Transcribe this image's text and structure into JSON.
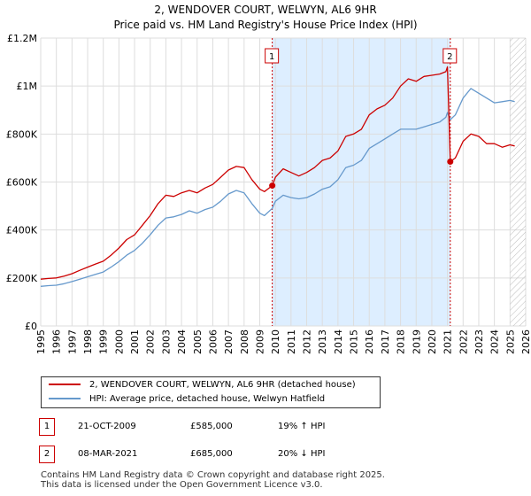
{
  "title_line1": "2, WENDOVER COURT, WELWYN, AL6 9HR",
  "title_line2": "Price paid vs. HM Land Registry's House Price Index (HPI)",
  "colors": {
    "property": "#cc0000",
    "hpi": "#6699cc",
    "grid": "#dddddd",
    "shade": "#ddeeff"
  },
  "legend": {
    "property_label": "2, WENDOVER COURT, WELWYN, AL6 9HR (detached house)",
    "hpi_label": "HPI: Average price, detached house, Welwyn Hatfield"
  },
  "sales": [
    {
      "id": "1",
      "date": "21-OCT-2009",
      "price": "£585,000",
      "hpi_change": "19% ↑ HPI",
      "year": 2009.8,
      "value": 585000
    },
    {
      "id": "2",
      "date": "08-MAR-2021",
      "price": "£685,000",
      "hpi_change": "20% ↓ HPI",
      "year": 2021.18,
      "value": 685000
    }
  ],
  "footer_line1": "Contains HM Land Registry data © Crown copyright and database right 2025.",
  "footer_line2": "This data is licensed under the Open Government Licence v3.0.",
  "chart_data": {
    "type": "line",
    "title": "2, WENDOVER COURT, WELWYN, AL6 9HR — Price paid vs. HM Land Registry's House Price Index (HPI)",
    "xlabel": "",
    "ylabel": "",
    "xlim": [
      1995,
      2026
    ],
    "ylim": [
      0,
      1200000
    ],
    "yticks": [
      0,
      200000,
      400000,
      600000,
      800000,
      1000000,
      1200000
    ],
    "ytick_labels": [
      "£0",
      "£200K",
      "£400K",
      "£600K",
      "£800K",
      "£1M",
      "£1.2M"
    ],
    "xticks": [
      1995,
      1996,
      1997,
      1998,
      1999,
      2000,
      2001,
      2002,
      2003,
      2004,
      2005,
      2006,
      2007,
      2008,
      2009,
      2010,
      2011,
      2012,
      2013,
      2014,
      2015,
      2016,
      2017,
      2018,
      2019,
      2020,
      2021,
      2022,
      2023,
      2024,
      2025,
      2026
    ],
    "shaded_ranges": [
      [
        2009.8,
        2021.18
      ]
    ],
    "hatched_after": 2025.0,
    "series": [
      {
        "name": "2, WENDOVER COURT, WELWYN, AL6 9HR (detached house)",
        "x": [
          1995,
          1995.5,
          1996,
          1996.5,
          1997,
          1997.5,
          1998,
          1998.5,
          1999,
          1999.5,
          2000,
          2000.5,
          2001,
          2001.5,
          2002,
          2002.5,
          2003,
          2003.5,
          2004,
          2004.5,
          2005,
          2005.5,
          2006,
          2006.5,
          2007,
          2007.5,
          2008,
          2008.5,
          2009,
          2009.3,
          2009.8,
          2010,
          2010.5,
          2011,
          2011.5,
          2012,
          2012.5,
          2013,
          2013.5,
          2014,
          2014.5,
          2015,
          2015.5,
          2016,
          2016.5,
          2017,
          2017.5,
          2018,
          2018.5,
          2019,
          2019.5,
          2020,
          2020.5,
          2020.9,
          2021.0,
          2021.18,
          2021.5,
          2022,
          2022.5,
          2023,
          2023.5,
          2024,
          2024.5,
          2025,
          2025.3
        ],
        "values": [
          195000,
          198000,
          200000,
          208000,
          218000,
          232000,
          245000,
          258000,
          270000,
          295000,
          325000,
          360000,
          380000,
          420000,
          460000,
          510000,
          545000,
          540000,
          555000,
          565000,
          555000,
          575000,
          590000,
          620000,
          650000,
          665000,
          660000,
          610000,
          570000,
          560000,
          585000,
          620000,
          655000,
          640000,
          625000,
          640000,
          660000,
          690000,
          700000,
          730000,
          790000,
          800000,
          820000,
          880000,
          905000,
          920000,
          950000,
          1000000,
          1030000,
          1020000,
          1040000,
          1045000,
          1050000,
          1060000,
          1080000,
          685000,
          700000,
          770000,
          800000,
          790000,
          760000,
          760000,
          745000,
          755000,
          750000
        ]
      },
      {
        "name": "HPI: Average price, detached house, Welwyn Hatfield",
        "x": [
          1995,
          1995.5,
          1996,
          1996.5,
          1997,
          1997.5,
          1998,
          1998.5,
          1999,
          1999.5,
          2000,
          2000.5,
          2001,
          2001.5,
          2002,
          2002.5,
          2003,
          2003.5,
          2004,
          2004.5,
          2005,
          2005.5,
          2006,
          2006.5,
          2007,
          2007.5,
          2008,
          2008.5,
          2009,
          2009.3,
          2009.8,
          2010,
          2010.5,
          2011,
          2011.5,
          2012,
          2012.5,
          2013,
          2013.5,
          2014,
          2014.5,
          2015,
          2015.5,
          2016,
          2016.5,
          2017,
          2017.5,
          2018,
          2018.5,
          2019,
          2019.5,
          2020,
          2020.5,
          2020.9,
          2021.0,
          2021.18,
          2021.5,
          2022,
          2022.5,
          2023,
          2023.5,
          2024,
          2024.5,
          2025,
          2025.3
        ],
        "values": [
          165000,
          168000,
          170000,
          176000,
          185000,
          195000,
          205000,
          215000,
          225000,
          245000,
          268000,
          295000,
          315000,
          345000,
          380000,
          420000,
          450000,
          455000,
          465000,
          480000,
          470000,
          485000,
          495000,
          520000,
          550000,
          565000,
          555000,
          510000,
          470000,
          460000,
          490000,
          520000,
          545000,
          535000,
          530000,
          535000,
          550000,
          570000,
          580000,
          610000,
          660000,
          670000,
          690000,
          740000,
          760000,
          780000,
          800000,
          820000,
          820000,
          820000,
          830000,
          840000,
          850000,
          870000,
          890000,
          860000,
          880000,
          950000,
          990000,
          970000,
          950000,
          930000,
          935000,
          940000,
          935000
        ]
      }
    ]
  }
}
